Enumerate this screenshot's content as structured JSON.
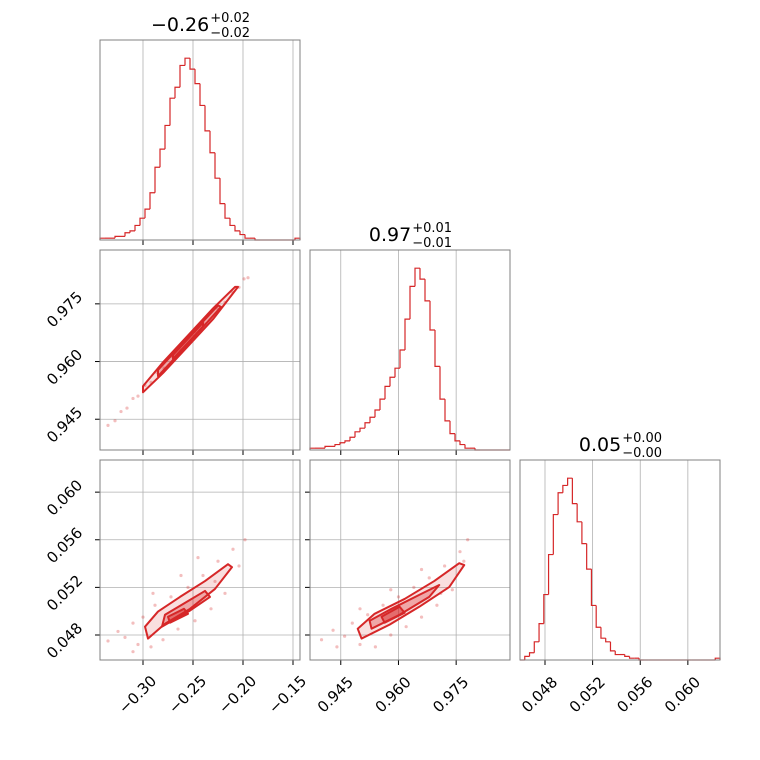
{
  "chart_data": [
    {
      "type": "histogram",
      "title": {
        "main": "−0.26",
        "upper": "+0.02",
        "lower": "−0.02"
      },
      "color": "#d62728",
      "bins": [
        -0.343,
        -0.338,
        -0.333,
        -0.328,
        -0.323,
        -0.318,
        -0.313,
        -0.308,
        -0.303,
        -0.298,
        -0.293,
        -0.288,
        -0.283,
        -0.278,
        -0.273,
        -0.268,
        -0.263,
        -0.258,
        -0.253,
        -0.248,
        -0.243,
        -0.238,
        -0.233,
        -0.228,
        -0.223,
        -0.218,
        -0.213,
        -0.208,
        -0.203,
        -0.198,
        -0.193,
        -0.188,
        -0.183,
        -0.178,
        -0.173,
        -0.168,
        -0.163,
        -0.158,
        -0.153,
        -0.148,
        -0.143
      ],
      "values": [
        1,
        1,
        1,
        2,
        2,
        4,
        5,
        8,
        12,
        17,
        26,
        40,
        50,
        63,
        78,
        84,
        96,
        100,
        94,
        86,
        74,
        60,
        48,
        34,
        20,
        12,
        8,
        5,
        3,
        1,
        1,
        0,
        0,
        0,
        0,
        0,
        0,
        0,
        0,
        1
      ],
      "xlim": [
        -0.343,
        -0.143
      ],
      "ylim": [
        0,
        110
      ],
      "grid": true
    },
    {
      "type": "scatter",
      "color": "#d62728",
      "xlim": [
        -0.343,
        -0.143
      ],
      "ylim": [
        0.937,
        0.989
      ],
      "yticks": [
        0.945,
        {
          "value": 0.96,
          "label": "0.960"
        },
        0.975
      ],
      "grid": true,
      "x": [
        -0.335,
        -0.328,
        -0.322,
        -0.316,
        -0.31,
        -0.305,
        -0.298,
        -0.292,
        -0.286,
        -0.279,
        -0.271,
        -0.262,
        -0.248,
        -0.238,
        -0.226,
        -0.218,
        -0.211,
        -0.204,
        -0.199,
        -0.195
      ],
      "y": [
        0.9434,
        0.9446,
        0.947,
        0.9479,
        0.9504,
        0.951,
        0.9538,
        0.9546,
        0.9571,
        0.9583,
        0.9613,
        0.963,
        0.9678,
        0.9698,
        0.9739,
        0.9754,
        0.9781,
        0.9793,
        0.9815,
        0.9818
      ],
      "contours": [
        {
          "x": [
            -0.3,
            -0.28,
            -0.255,
            -0.23,
            -0.208,
            -0.205,
            -0.23,
            -0.255,
            -0.28,
            -0.3
          ],
          "y": [
            0.9536,
            0.9598,
            0.9668,
            0.9738,
            0.9794,
            0.9794,
            0.971,
            0.964,
            0.957,
            0.952
          ]
        },
        {
          "x": [
            -0.285,
            -0.255,
            -0.225,
            -0.222,
            -0.255,
            -0.285
          ],
          "y": [
            0.9578,
            0.9662,
            0.9746,
            0.9742,
            0.9646,
            0.9562
          ]
        },
        {
          "x": [
            -0.27,
            -0.255,
            -0.24,
            -0.24,
            -0.255,
            -0.27
          ],
          "y": [
            0.9617,
            0.9659,
            0.9701,
            0.9691,
            0.9649,
            0.9607
          ]
        }
      ]
    },
    {
      "type": "histogram",
      "title": {
        "main": "0.97",
        "upper": "+0.01",
        "lower": "−0.01"
      },
      "color": "#d62728",
      "bins": [
        0.937,
        0.9383,
        0.9396,
        0.9409,
        0.9422,
        0.9435,
        0.9448,
        0.9461,
        0.9474,
        0.9487,
        0.95,
        0.9513,
        0.9526,
        0.9539,
        0.9552,
        0.9565,
        0.9578,
        0.9591,
        0.9604,
        0.9617,
        0.963,
        0.9643,
        0.9656,
        0.9669,
        0.9682,
        0.9695,
        0.9708,
        0.9721,
        0.9734,
        0.9747,
        0.976,
        0.9773,
        0.9786,
        0.9799,
        0.9812,
        0.9825,
        0.9838,
        0.9851,
        0.9864,
        0.9877,
        0.989
      ],
      "values": [
        1,
        1,
        1,
        2,
        2,
        3,
        4,
        5,
        7,
        10,
        12,
        15,
        18,
        22,
        28,
        35,
        40,
        45,
        55,
        72,
        90,
        100,
        94,
        82,
        66,
        46,
        28,
        16,
        9,
        5,
        3,
        1,
        1,
        0,
        0,
        0,
        0,
        0,
        0,
        0
      ],
      "xlim": [
        0.937,
        0.989
      ],
      "ylim": [
        0,
        110
      ],
      "grid": true
    },
    {
      "type": "scatter",
      "color": "#d62728",
      "xlim": [
        -0.343,
        -0.143
      ],
      "ylim": [
        0.0459,
        0.0627
      ],
      "xticks": [
        {
          "value": -0.3,
          "label": "−0.30"
        },
        {
          "value": -0.25,
          "label": "−0.25"
        },
        {
          "value": -0.2,
          "label": "−0.20"
        },
        {
          "value": -0.15,
          "label": "−0.15"
        }
      ],
      "yticks": [
        0.048,
        0.052,
        0.056,
        {
          "value": 0.06,
          "label": "0.060"
        }
      ],
      "grid": true,
      "x": [
        -0.335,
        -0.325,
        -0.318,
        -0.31,
        -0.305,
        -0.3,
        -0.292,
        -0.288,
        -0.28,
        -0.272,
        -0.265,
        -0.255,
        -0.248,
        -0.24,
        -0.232,
        -0.225,
        -0.218,
        -0.21,
        -0.204,
        -0.198,
        -0.262,
        -0.31,
        -0.29,
        -0.245,
        -0.228
      ],
      "y": [
        0.0475,
        0.0483,
        0.0478,
        0.049,
        0.0472,
        0.0495,
        0.047,
        0.0505,
        0.0476,
        0.0512,
        0.0485,
        0.052,
        0.0492,
        0.053,
        0.0502,
        0.0542,
        0.0515,
        0.0552,
        0.0538,
        0.056,
        0.053,
        0.0466,
        0.0515,
        0.0545,
        0.0525
      ],
      "contours": [
        {
          "x": [
            -0.295,
            -0.278,
            -0.253,
            -0.228,
            -0.211,
            -0.215,
            -0.238,
            -0.263,
            -0.285,
            -0.298
          ],
          "y": [
            0.0477,
            0.04895,
            0.0502,
            0.05187,
            0.0537,
            0.05395,
            0.05253,
            0.0512,
            0.04997,
            0.0487
          ]
        },
        {
          "x": [
            -0.281,
            -0.253,
            -0.233,
            -0.238,
            -0.258,
            -0.278
          ],
          "y": [
            0.0487,
            0.05005,
            0.0512,
            0.0517,
            0.0507,
            0.0497
          ]
        },
        {
          "x": [
            -0.273,
            -0.255,
            -0.259,
            -0.275
          ],
          "y": [
            0.04903,
            0.04978,
            0.0502,
            0.04953
          ]
        }
      ]
    },
    {
      "type": "scatter",
      "color": "#d62728",
      "xlim": [
        0.937,
        0.989
      ],
      "ylim": [
        0.0459,
        0.0627
      ],
      "xticks": [
        0.945,
        {
          "value": 0.96,
          "label": "0.960"
        },
        0.975
      ],
      "grid": true,
      "x": [
        0.94,
        0.943,
        0.946,
        0.948,
        0.95,
        0.952,
        0.954,
        0.956,
        0.958,
        0.96,
        0.962,
        0.964,
        0.966,
        0.968,
        0.97,
        0.972,
        0.974,
        0.976,
        0.977,
        0.978,
        0.944,
        0.958,
        0.966,
        0.971,
        0.95
      ],
      "y": [
        0.0476,
        0.0484,
        0.0479,
        0.049,
        0.0472,
        0.0497,
        0.047,
        0.0505,
        0.048,
        0.0512,
        0.0487,
        0.052,
        0.0495,
        0.0528,
        0.0505,
        0.0538,
        0.0518,
        0.055,
        0.0542,
        0.056,
        0.047,
        0.0518,
        0.0535,
        0.0515,
        0.0502
      ],
      "contours": [
        {
          "x": [
            0.9504,
            0.9577,
            0.9654,
            0.9732,
            0.9771,
            0.9758,
            0.9693,
            0.9616,
            0.9538,
            0.9494
          ],
          "y": [
            0.0477,
            0.04887,
            0.05037,
            0.05203,
            0.05387,
            0.05403,
            0.05253,
            0.05103,
            0.04978,
            0.04853
          ]
        },
        {
          "x": [
            0.953,
            0.9603,
            0.968,
            0.9706,
            0.9654,
            0.9582,
            0.9525
          ],
          "y": [
            0.04853,
            0.0497,
            0.0512,
            0.0522,
            0.05137,
            0.0502,
            0.0492
          ]
        },
        {
          "x": [
            0.9564,
            0.9616,
            0.9603,
            0.9556
          ],
          "y": [
            0.04903,
            0.04987,
            0.05037,
            0.04953
          ]
        }
      ]
    },
    {
      "type": "histogram",
      "title": {
        "main": "0.05",
        "upper": "+0.00",
        "lower": "−0.00"
      },
      "color": "#d62728",
      "bins": [
        0.0459,
        0.0463,
        0.0467,
        0.0471,
        0.0475,
        0.0479,
        0.0483,
        0.0487,
        0.0491,
        0.0495,
        0.0499,
        0.0503,
        0.0507,
        0.0511,
        0.0515,
        0.0519,
        0.0523,
        0.0527,
        0.0531,
        0.0535,
        0.0539,
        0.0543,
        0.0547,
        0.0551,
        0.0555,
        0.0559,
        0.0563,
        0.0567,
        0.0571,
        0.0575,
        0.0579,
        0.0583,
        0.0587,
        0.0591,
        0.0595,
        0.0599,
        0.0603,
        0.0607,
        0.0611,
        0.0615,
        0.0619,
        0.0623,
        0.0627
      ],
      "values": [
        0,
        2,
        4,
        10,
        20,
        36,
        58,
        80,
        92,
        96,
        100,
        86,
        76,
        64,
        50,
        30,
        18,
        12,
        10,
        5,
        3,
        3,
        2,
        1,
        1,
        0,
        0,
        0,
        0,
        0,
        0,
        0,
        0,
        0,
        0,
        0,
        0,
        0,
        0,
        0,
        0,
        1
      ],
      "xlim": [
        0.0459,
        0.0627
      ],
      "ylim": [
        0,
        110
      ],
      "grid": true,
      "xticks": [
        0.048,
        0.052,
        0.056,
        {
          "value": 0.06,
          "label": "0.060"
        }
      ]
    }
  ]
}
